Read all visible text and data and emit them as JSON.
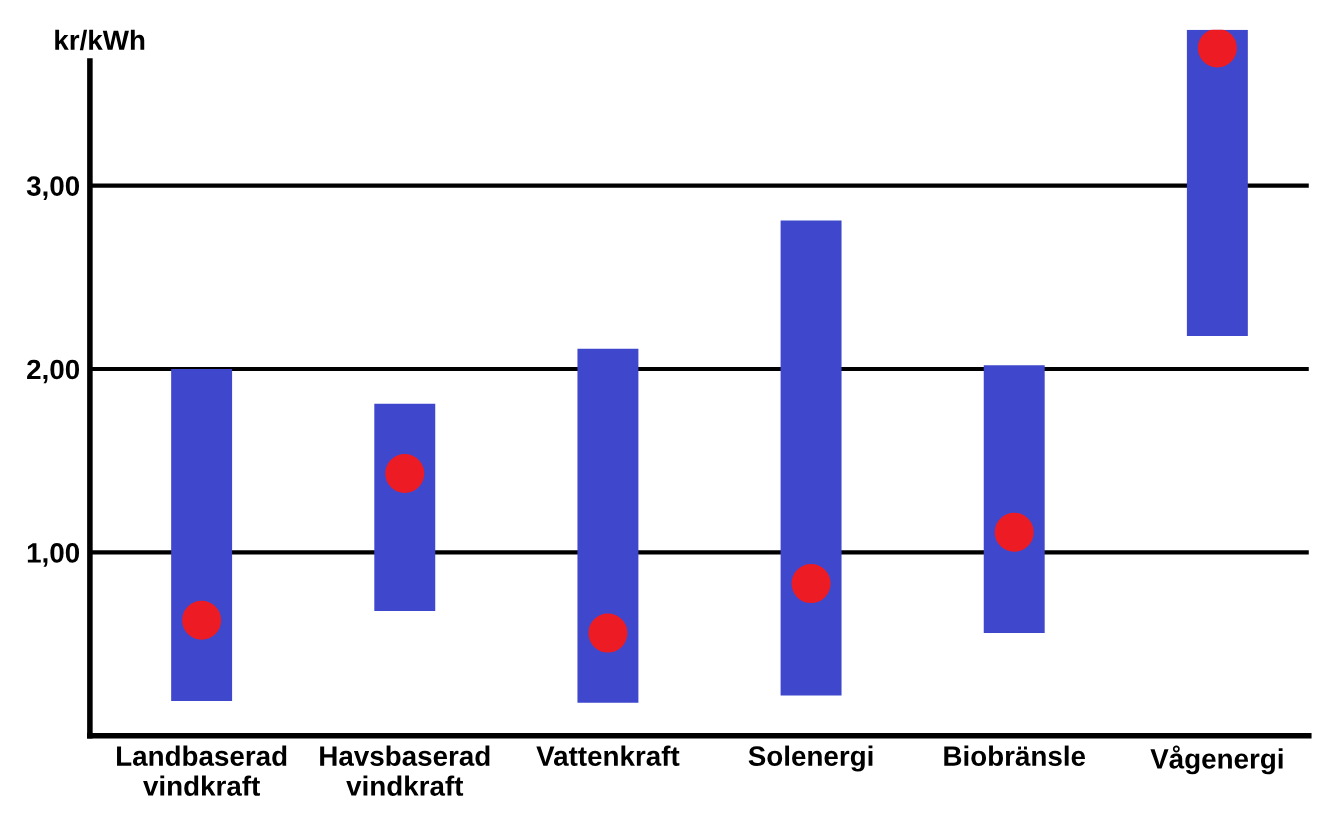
{
  "chart_data": {
    "type": "bar",
    "ylabel": "kr/kWh",
    "categories": [
      "Landbaserad vindkraft",
      "Havsbaserad vindkraft",
      "Vattenkraft",
      "Solenergi",
      "Biobränsle",
      "Vågenergi"
    ],
    "series": [
      {
        "color": "#3f48cc",
        "base": [
          0.19,
          0.68,
          0.18,
          0.22,
          0.56,
          2.18
        ],
        "values": [
          1.81,
          1.13,
          1.93,
          2.59,
          1.46,
          1.67
        ]
      },
      {
        "type": "scatter",
        "color": "#ed1c24",
        "x": [
          "Landbaserad vindkraft",
          "Havsbaserad vindkraft",
          "Vattenkraft",
          "Solenergi",
          "Biobränsle",
          "Vågenergi"
        ],
        "values": [
          0.63,
          1.43,
          0.56,
          0.83,
          1.11,
          3.75
        ]
      }
    ],
    "ylim": [
      0,
      3.85
    ],
    "yticks": [
      {
        "value": 1,
        "label": "1,00"
      },
      {
        "value": 2,
        "label": "2,00"
      },
      {
        "value": 3,
        "label": "3,00"
      }
    ],
    "grid": "y",
    "legend": false,
    "marker": "circle"
  }
}
